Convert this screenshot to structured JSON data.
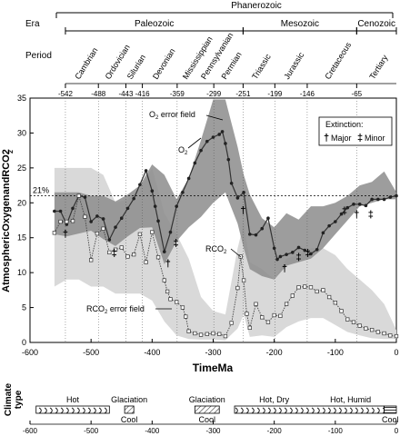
{
  "eras": {
    "eon_label": "Phanerozoic",
    "row_labels": {
      "era": "Era",
      "period": "Period"
    },
    "era_items": [
      {
        "name": "Paleozoic",
        "start": -542,
        "end": -251
      },
      {
        "name": "Mesozoic",
        "start": -251,
        "end": -65
      },
      {
        "name": "Cenozoic",
        "start": -65,
        "end": 0
      }
    ],
    "period_items": [
      {
        "name": "Cambrian",
        "start": -542,
        "end": -488
      },
      {
        "name": "Ordovician",
        "start": -488,
        "end": -443
      },
      {
        "name": "Silurian",
        "start": -443,
        "end": -416
      },
      {
        "name": "Devonian",
        "start": -416,
        "end": -359
      },
      {
        "name": "Mississippian",
        "start": -359,
        "end": -318
      },
      {
        "name": "Pennsylvanian",
        "start": -318,
        "end": -299
      },
      {
        "name": "Permian",
        "start": -299,
        "end": -251
      },
      {
        "name": "Triassic",
        "start": -251,
        "end": -199
      },
      {
        "name": "Jurassic",
        "start": -199,
        "end": -146
      },
      {
        "name": "Cretaceous",
        "start": -146,
        "end": -65
      },
      {
        "name": "Tertiary",
        "start": -65,
        "end": 0
      }
    ],
    "boundaries": [
      -542,
      -488,
      -443,
      -416,
      -359,
      -299,
      -251,
      -199,
      -146,
      -65
    ],
    "boundary_labels": [
      "-542",
      "-488",
      "-443",
      "-416",
      "-359",
      "-299",
      "-251",
      "-199",
      "-146",
      "-65"
    ]
  },
  "chart_data": {
    "type": "line",
    "xlabel": "TimeMa",
    "ylabel": "AtmosphericOxygenandRCO2",
    "ylabel_sub": "2",
    "xlim": [
      -600,
      0
    ],
    "ylim": [
      0,
      35
    ],
    "xticks": [
      -600,
      -500,
      -400,
      -300,
      -200,
      -100,
      0
    ],
    "xtick_labels": [
      "-600",
      "-500",
      "-400",
      "-300",
      "-200",
      "-100",
      "0"
    ],
    "yticks": [
      0,
      5,
      10,
      15,
      20,
      25,
      30,
      35
    ],
    "ytick_labels": [
      "0",
      "5",
      "10",
      "15",
      "20",
      "25",
      "30",
      "35"
    ],
    "reference_line": {
      "y": 21,
      "label": "21%"
    },
    "series": [
      {
        "name": "O2",
        "color": "#333333",
        "marker": "filled-circle",
        "x": [
          -560,
          -550,
          -540,
          -530,
          -520,
          -510,
          -500,
          -490,
          -480,
          -470,
          -460,
          -450,
          -440,
          -430,
          -420,
          -410,
          -400,
          -395,
          -390,
          -380,
          -370,
          -360,
          -350,
          -340,
          -330,
          -320,
          -310,
          -300,
          -290,
          -285,
          -280,
          -275,
          -270,
          -260,
          -250,
          -240,
          -230,
          -220,
          -210,
          -200,
          -195,
          -190,
          -180,
          -170,
          -160,
          -150,
          -140,
          -130,
          -120,
          -110,
          -100,
          -90,
          -80,
          -70,
          -60,
          -50,
          -40,
          -30,
          -20,
          -10,
          0
        ],
        "y": [
          18.8,
          18.8,
          16.9,
          19.2,
          21.0,
          20.8,
          17.3,
          18.1,
          17.7,
          14.7,
          16.5,
          17.8,
          19.2,
          20.6,
          22.6,
          24.6,
          21.7,
          19.5,
          17.4,
          13.0,
          15.8,
          19.5,
          21.5,
          23.5,
          25.7,
          27.5,
          28.8,
          29.4,
          29.8,
          30.2,
          28.5,
          26.2,
          22.8,
          20.7,
          21.5,
          15.5,
          15.4,
          16.3,
          17.8,
          13.5,
          11.9,
          12.3,
          12.6,
          12.9,
          13.6,
          13.2,
          12.7,
          13.3,
          15.7,
          16.7,
          17.3,
          18.4,
          19.3,
          19.8,
          19.8,
          19.6,
          20.5,
          20.5,
          20.5,
          20.8,
          21.0
        ]
      },
      {
        "name": "RCO2",
        "color": "#444444",
        "marker": "open-square",
        "x": [
          -560,
          -550,
          -540,
          -530,
          -520,
          -510,
          -500,
          -490,
          -480,
          -470,
          -460,
          -450,
          -440,
          -430,
          -420,
          -410,
          -400,
          -390,
          -380,
          -375,
          -370,
          -360,
          -350,
          -345,
          -340,
          -330,
          -320,
          -310,
          -300,
          -290,
          -280,
          -270,
          -260,
          -255,
          -250,
          -245,
          -240,
          -230,
          -220,
          -210,
          -200,
          -190,
          -180,
          -170,
          -160,
          -150,
          -140,
          -130,
          -120,
          -110,
          -100,
          -90,
          -80,
          -70,
          -60,
          -50,
          -40,
          -30,
          -20,
          -10,
          0
        ],
        "y": [
          15.7,
          17.3,
          17.3,
          17.4,
          21.0,
          18.0,
          11.8,
          15.6,
          16.3,
          12.9,
          13.3,
          13.6,
          12.3,
          12.6,
          15.5,
          11.5,
          15.8,
          12.2,
          8.9,
          7.3,
          6.2,
          5.8,
          5.0,
          3.7,
          1.6,
          1.3,
          1.1,
          1.2,
          1.3,
          1.2,
          0.9,
          2.8,
          7.8,
          12.3,
          8.9,
          4.1,
          2.1,
          5.5,
          3.6,
          2.9,
          3.9,
          3.8,
          5.5,
          6.7,
          7.9,
          8.0,
          7.9,
          7.3,
          7.5,
          6.5,
          5.7,
          4.5,
          3.3,
          2.9,
          2.4,
          2.0,
          1.8,
          1.5,
          1.3,
          1.0,
          0.9
        ]
      }
    ],
    "bands": [
      {
        "name": "O2 error field",
        "color": "#8c8c8c",
        "x": [
          -560,
          -540,
          -520,
          -500,
          -480,
          -460,
          -440,
          -420,
          -400,
          -380,
          -360,
          -340,
          -320,
          -300,
          -280,
          -260,
          -250,
          -240,
          -220,
          -200,
          -180,
          -160,
          -140,
          -120,
          -100,
          -80,
          -60,
          -40,
          -20,
          0
        ],
        "upper": [
          21.5,
          21.5,
          21.5,
          21.0,
          21.0,
          20.2,
          21.2,
          22.5,
          25.5,
          24.0,
          20.5,
          23.5,
          29.0,
          34.8,
          34.8,
          28.0,
          24.0,
          21.2,
          17.8,
          16.5,
          18.5,
          17.6,
          19.5,
          19.5,
          20.0,
          21.0,
          22.5,
          23.0,
          24.5,
          21.5
        ],
        "lower": [
          15.5,
          15.2,
          15.6,
          16.0,
          14.8,
          13.8,
          15.2,
          16.4,
          16.5,
          11.2,
          14.5,
          16.5,
          18.0,
          20.0,
          21.5,
          17.0,
          13.5,
          10.5,
          9.5,
          9.0,
          11.0,
          11.5,
          12.0,
          13.5,
          15.5,
          17.5,
          19.5,
          20.0,
          20.5,
          20.5
        ]
      },
      {
        "name": "RCO2 error field",
        "color": "#d9d9d9",
        "x": [
          -560,
          -540,
          -520,
          -500,
          -480,
          -460,
          -440,
          -420,
          -400,
          -380,
          -360,
          -340,
          -320,
          -300,
          -280,
          -260,
          -250,
          -240,
          -220,
          -200,
          -180,
          -160,
          -140,
          -120,
          -100,
          -80,
          -60,
          -40,
          -20,
          0
        ],
        "upper": [
          25.0,
          25.0,
          25.0,
          25.0,
          24.0,
          20.0,
          20.5,
          22.0,
          25.0,
          18.5,
          15.5,
          12.0,
          6.5,
          4.5,
          4.0,
          13.5,
          17.0,
          11.5,
          10.5,
          9.0,
          12.0,
          12.5,
          13.5,
          13.5,
          12.5,
          10.5,
          9.0,
          7.5,
          5.5,
          1.8
        ],
        "lower": [
          8.0,
          9.0,
          9.0,
          8.0,
          8.0,
          7.0,
          7.0,
          7.0,
          6.0,
          3.0,
          1.0,
          0.5,
          0.4,
          0.4,
          0.3,
          2.0,
          4.0,
          0.8,
          1.0,
          0.8,
          2.2,
          3.0,
          3.5,
          3.5,
          2.5,
          1.5,
          1.0,
          0.6,
          0.5,
          0.5
        ]
      }
    ],
    "annotations": [
      {
        "id": "o2-error-label",
        "text": "O2 error field",
        "target_x": -270,
        "target_y": 30.5
      },
      {
        "id": "o2-label",
        "text": "O2",
        "target_x": -303,
        "target_y": 28.0
      },
      {
        "id": "rco2-label",
        "text": "RCO2",
        "target_x": -262,
        "target_y": 11.5
      },
      {
        "id": "rco2-error-label",
        "text": "RCO2 error field",
        "target_x": -365,
        "target_y": 4.0
      }
    ],
    "legend": {
      "title": "Extinction:",
      "items": [
        {
          "symbol": "†",
          "label": "Major"
        },
        {
          "symbol": "‡",
          "label": "Minor"
        }
      ],
      "position": "top-right"
    },
    "extinctions": [
      {
        "x": -542,
        "y": 15.6,
        "type": "major"
      },
      {
        "x": -462,
        "y": 12.9,
        "type": "minor"
      },
      {
        "x": -374,
        "y": 11.4,
        "type": "major"
      },
      {
        "x": -361,
        "y": 14.3,
        "type": "minor"
      },
      {
        "x": -251,
        "y": 19.0,
        "type": "major"
      },
      {
        "x": -183,
        "y": 10.7,
        "type": "major"
      },
      {
        "x": -160,
        "y": 12.3,
        "type": "minor"
      },
      {
        "x": -145,
        "y": 12.9,
        "type": "minor"
      },
      {
        "x": -85,
        "y": 18.9,
        "type": "minor"
      },
      {
        "x": -65,
        "y": 18.4,
        "type": "major"
      },
      {
        "x": -42,
        "y": 18.4,
        "type": "minor"
      }
    ]
  },
  "climate": {
    "axis_label_line1": "Climate",
    "axis_label_line2": "type",
    "xticks": [
      -600,
      -500,
      -400,
      -300,
      -200,
      -100,
      0
    ],
    "xtick_labels": [
      "-600",
      "-500",
      "-400",
      "-300",
      "-200",
      "-100",
      "0"
    ],
    "segments": [
      {
        "start": -590,
        "end": -470,
        "pattern": "wavy",
        "label": "Hot",
        "label_pos": "above"
      },
      {
        "start": -445,
        "end": -430,
        "pattern": "hatch",
        "label": "Glaciation",
        "label_pos": "above"
      },
      {
        "start": -445,
        "end": -430,
        "pattern": "none",
        "label": "Cool",
        "label_pos": "below"
      },
      {
        "start": -330,
        "end": -290,
        "pattern": "hatch",
        "label": "Glaciation",
        "label_pos": "above"
      },
      {
        "start": -330,
        "end": -290,
        "pattern": "none",
        "label": "Cool",
        "label_pos": "below"
      },
      {
        "start": -265,
        "end": -20,
        "pattern": "wavy",
        "label": "Hot, Dry",
        "label_pos": "above",
        "label_at": -200
      },
      {
        "start": -265,
        "end": -20,
        "pattern": "none",
        "label": "Hot, Humid",
        "label_pos": "above",
        "label_at": -75
      },
      {
        "start": -20,
        "end": 0,
        "pattern": "lines",
        "label": "Cool",
        "label_pos": "below"
      }
    ]
  }
}
